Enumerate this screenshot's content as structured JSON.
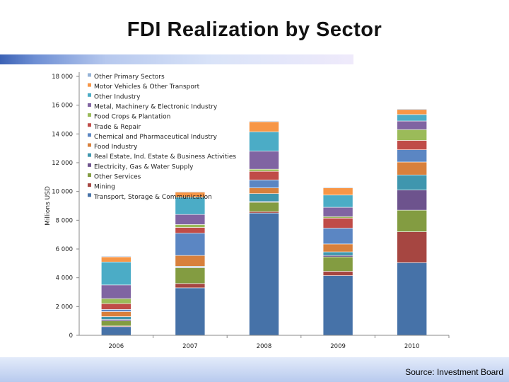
{
  "title": "FDI Realization by Sector",
  "source": "Source: Investment Board",
  "colors": {
    "Transport, Storage & Communication": "#4672a8",
    "Mining": "#a64641",
    "Other Services": "#839c41",
    "Electricity, Gas & Water Supply": "#6d538d",
    "Real Estate, Ind. Estate & Business Activities": "#3f96ae",
    "Food Industry": "#d8803c",
    "Chemical and Pharmaceutical Industry": "#5b86c3",
    "Trade & Repair": "#c04c48",
    "Food Crops & Plantation": "#9bbb59",
    "Metal, Machinery & Electronic Industry": "#8064a2",
    "Other Industry": "#4bacc6",
    "Motor Vehicles & Other Transport": "#f79646",
    "Other Primary Sectors": "#95b3d7"
  },
  "chart_data": {
    "type": "bar",
    "stacked": true,
    "title": "FDI Realization by Sector",
    "xlabel": "",
    "ylabel": "Millions USD",
    "ylim": [
      0,
      18000
    ],
    "yticks": [
      0,
      2000,
      4000,
      6000,
      8000,
      10000,
      12000,
      14000,
      16000,
      18000
    ],
    "ytick_labels": [
      "0",
      "2 000",
      "4 000",
      "6 000",
      "8 000",
      "10 000",
      "12 000",
      "14 000",
      "16 000",
      "18 000"
    ],
    "categories": [
      "2006",
      "2007",
      "2008",
      "2009",
      "2010"
    ],
    "legend_position": "top-left inside plot",
    "series": [
      {
        "name": "Transport, Storage & Communication",
        "values": [
          600,
          3300,
          8500,
          4150,
          5050
        ]
      },
      {
        "name": "Mining",
        "values": [
          50,
          300,
          100,
          300,
          2150
        ]
      },
      {
        "name": "Other Services",
        "values": [
          350,
          1100,
          650,
          1000,
          1500
        ]
      },
      {
        "name": "Electricity, Gas & Water Supply",
        "values": [
          100,
          50,
          50,
          100,
          1400
        ]
      },
      {
        "name": "Real Estate, Ind. Estate & Business Activities",
        "values": [
          200,
          50,
          550,
          250,
          1050
        ]
      },
      {
        "name": "Food Industry",
        "values": [
          350,
          750,
          400,
          550,
          900
        ]
      },
      {
        "name": "Chemical and Pharmaceutical Industry",
        "values": [
          150,
          1550,
          550,
          1100,
          850
        ]
      },
      {
        "name": "Trade & Repair",
        "values": [
          400,
          400,
          600,
          700,
          650
        ]
      },
      {
        "name": "Food Crops & Plantation",
        "values": [
          350,
          200,
          150,
          100,
          750
        ]
      },
      {
        "name": "Metal, Machinery & Electronic Industry",
        "values": [
          950,
          700,
          1250,
          650,
          600
        ]
      },
      {
        "name": "Other Industry",
        "values": [
          1600,
          1200,
          1350,
          850,
          450
        ]
      },
      {
        "name": "Motor Vehicles & Other Transport",
        "values": [
          350,
          350,
          700,
          500,
          350
        ]
      },
      {
        "name": "Other Primary Sectors",
        "values": [
          50,
          50,
          50,
          50,
          50
        ]
      }
    ],
    "legend_order": [
      "Other Primary Sectors",
      "Motor Vehicles & Other Transport",
      "Other Industry",
      "Metal, Machinery & Electronic Industry",
      "Food Crops & Plantation",
      "Trade & Repair",
      "Chemical and Pharmaceutical Industry",
      "Food Industry",
      "Real Estate, Ind. Estate & Business Activities",
      "Electricity, Gas & Water Supply",
      "Other Services",
      "Mining",
      "Transport, Storage & Communication"
    ]
  }
}
